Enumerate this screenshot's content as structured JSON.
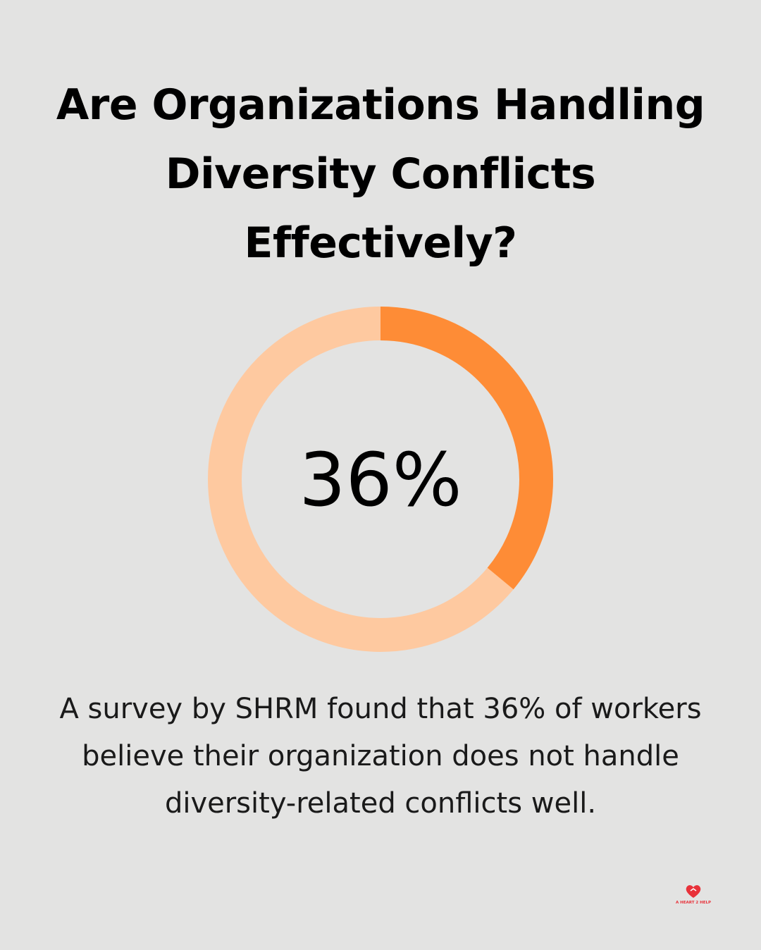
{
  "title": {
    "lines": [
      "Are Organizations Handling",
      "Diversity Conflicts",
      "Effectively?"
    ]
  },
  "chart_data": {
    "type": "pie",
    "variant": "donut",
    "value_percent": 36,
    "center_label": "36%",
    "slices": [
      {
        "value": 36,
        "color": "#fe8c36"
      },
      {
        "value": 64,
        "color": "#fec9a0"
      }
    ]
  },
  "caption": {
    "lines": [
      "A survey by SHRM found that 36% of workers",
      "believe their organization does not handle",
      "diversity-related conflicts well."
    ]
  },
  "logo": {
    "text": "A HEART 2 HELP",
    "icon": "heart-icon",
    "color": "#e8323a"
  },
  "colors": {
    "background": "#e3e3e2",
    "accent": "#fe8c36",
    "track": "#fec9a0"
  }
}
